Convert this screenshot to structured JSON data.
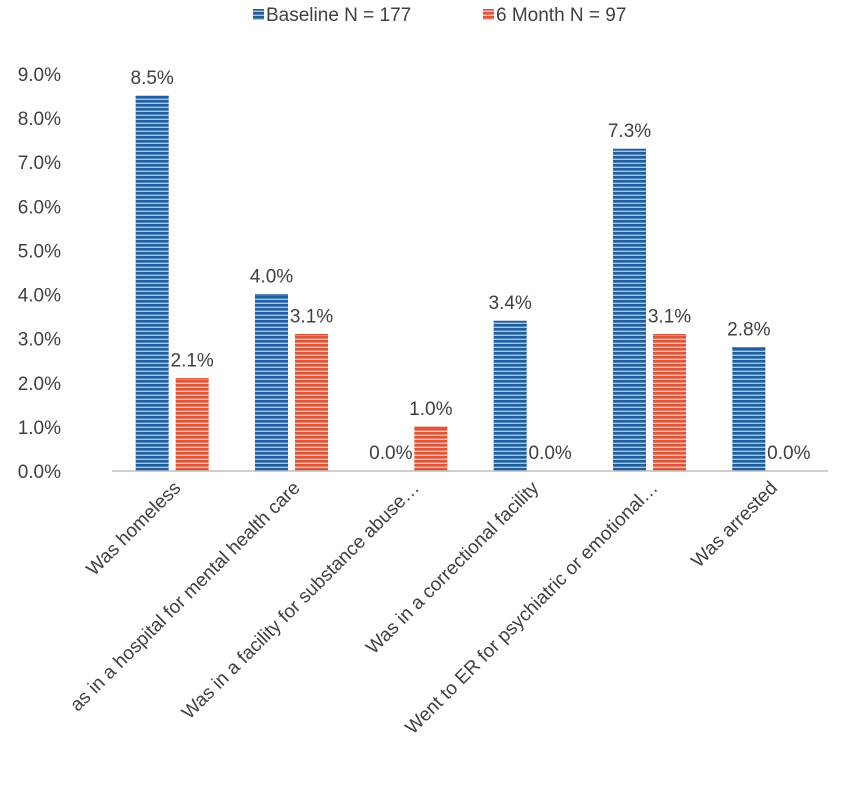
{
  "chart_data": {
    "type": "bar",
    "categories": [
      "Was homeless",
      "as in a hospital for mental health care",
      "Was in a facility for substance abuse…",
      "Was in a correctional facility",
      "Went to ER for psychiatric or emotional…",
      "Was arrested"
    ],
    "series": [
      {
        "name": "Baseline N = 177",
        "values": [
          8.5,
          4.0,
          0.0,
          3.4,
          7.3,
          2.8
        ],
        "labels": [
          "8.5%",
          "4.0%",
          "0.0%",
          "3.4%",
          "7.3%",
          "2.8%"
        ],
        "color": "#1f5e9e",
        "stripe": "#a9c4e4"
      },
      {
        "name": "6 Month N = 97",
        "values": [
          2.1,
          3.1,
          1.0,
          0.0,
          3.1,
          0.0
        ],
        "labels": [
          "2.1%",
          "3.1%",
          "1.0%",
          "0.0%",
          "3.1%",
          "0.0%"
        ],
        "color": "#e0553a",
        "stripe": "#f5c2b5"
      }
    ],
    "ylim": [
      0,
      9
    ],
    "yticks": [
      0,
      1,
      2,
      3,
      4,
      5,
      6,
      7,
      8,
      9
    ],
    "ytick_labels": [
      "0.0%",
      "1.0%",
      "2.0%",
      "3.0%",
      "4.0%",
      "5.0%",
      "6.0%",
      "7.0%",
      "8.0%",
      "9.0%"
    ],
    "grid": false,
    "legend_position": "top-center",
    "title": "",
    "xlabel": "",
    "ylabel": ""
  }
}
